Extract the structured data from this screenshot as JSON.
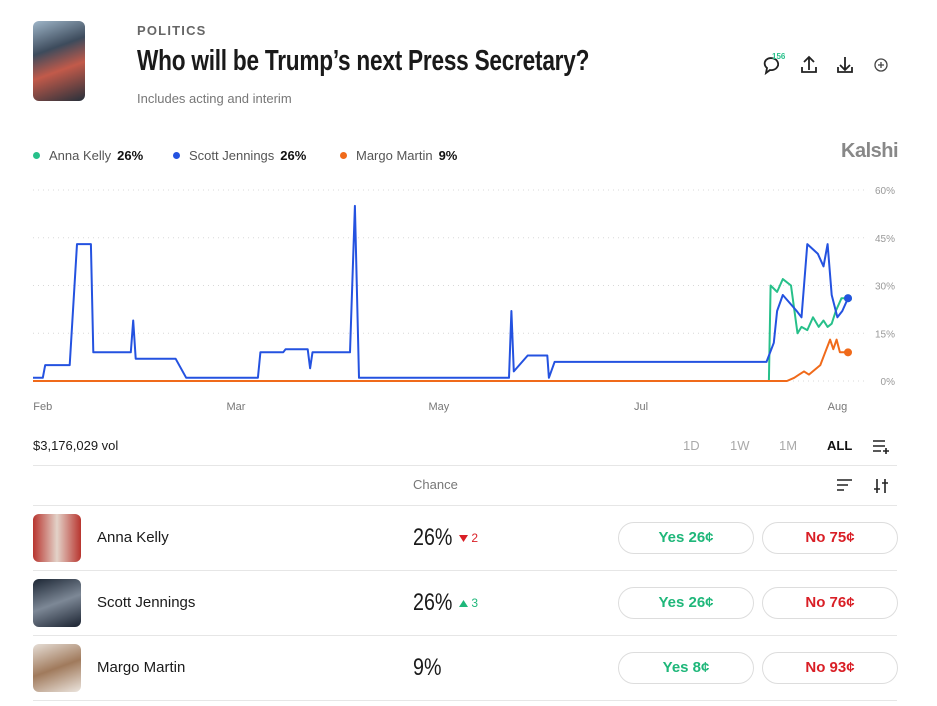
{
  "header": {
    "category": "POLITICS",
    "title": "Who will be Trump’s next Press Secretary?",
    "subtitle": "Includes acting and interim",
    "comments": "156",
    "brand": "Kalshi"
  },
  "chart_data": {
    "type": "line",
    "xlim": [
      0,
      100
    ],
    "xticks": [
      {
        "value": 1.2,
        "label": "Feb"
      },
      {
        "value": 24.9,
        "label": "Mar"
      },
      {
        "value": 49.8,
        "label": "May"
      },
      {
        "value": 74.6,
        "label": "Jul"
      },
      {
        "value": 98.7,
        "label": "Aug"
      }
    ],
    "ylim": [
      0,
      60
    ],
    "yticks": [
      {
        "value": 0,
        "label": "0%"
      },
      {
        "value": 15,
        "label": "15%"
      },
      {
        "value": 30,
        "label": "30%"
      },
      {
        "value": 45,
        "label": "45%"
      },
      {
        "value": 60,
        "label": "60%"
      }
    ],
    "grid": true,
    "series": [
      {
        "name": "Anna Kelly",
        "current": "26%",
        "color": "#27c08a",
        "x": [
          0,
          90.3,
          90.5,
          91.3,
          92,
          93,
          93.8,
          94.3,
          95,
          95.7,
          96.4,
          97,
          97.5,
          98,
          98.5,
          99.2,
          100
        ],
        "values": [
          0,
          0,
          30,
          28,
          32,
          30,
          15,
          17,
          16,
          20,
          17,
          19,
          17,
          18,
          22,
          26,
          26
        ]
      },
      {
        "name": "Scott Jennings",
        "current": "26%",
        "color": "#2452e0",
        "x": [
          0,
          1.2,
          1.5,
          4.5,
          5.4,
          7.1,
          7.4,
          12,
          12.3,
          12.6,
          17.5,
          18.8,
          27.6,
          27.9,
          30.7,
          31,
          33.7,
          34,
          34.3,
          38.9,
          39.5,
          40,
          58.4,
          58.7,
          59,
          60.7,
          63.1,
          63.3,
          64,
          90,
          90.9,
          91.3,
          92,
          93.7,
          94.3,
          95,
          96.3,
          97,
          97.5,
          98,
          98.7,
          99.3,
          100
        ],
        "values": [
          1,
          1,
          5,
          5,
          43,
          43,
          9,
          9,
          19,
          7,
          7,
          1,
          1,
          9,
          9,
          10,
          10,
          4,
          9,
          9,
          55,
          1,
          1,
          22,
          3,
          8,
          8,
          1,
          6,
          6,
          12,
          22,
          27,
          22,
          20,
          43,
          40,
          36,
          43,
          27,
          20,
          22,
          26
        ]
      },
      {
        "name": "Margo Martin",
        "current": "9%",
        "color": "#f06a1a",
        "x": [
          0,
          92.5,
          93.4,
          94,
          94.6,
          95.2,
          96.6,
          97.2,
          97.8,
          98.2,
          98.6,
          99,
          100
        ],
        "values": [
          0,
          0,
          1,
          2,
          3,
          2,
          5,
          9,
          13,
          10,
          13,
          9,
          9
        ]
      }
    ]
  },
  "volume": "$3,176,029 vol",
  "ranges": [
    "1D",
    "1W",
    "1M",
    "ALL"
  ],
  "table": {
    "chance_header": "Chance",
    "rows": [
      {
        "name": "Anna Kelly",
        "chance": "26%",
        "change": "2",
        "yes": "Yes 26¢",
        "no": "No 75¢"
      },
      {
        "name": "Scott Jennings",
        "chance": "26%",
        "change": "3",
        "yes": "Yes 26¢",
        "no": "No 76¢"
      },
      {
        "name": "Margo Martin",
        "chance": "9%",
        "yes": "Yes 8¢",
        "no": "No 93¢"
      }
    ]
  }
}
